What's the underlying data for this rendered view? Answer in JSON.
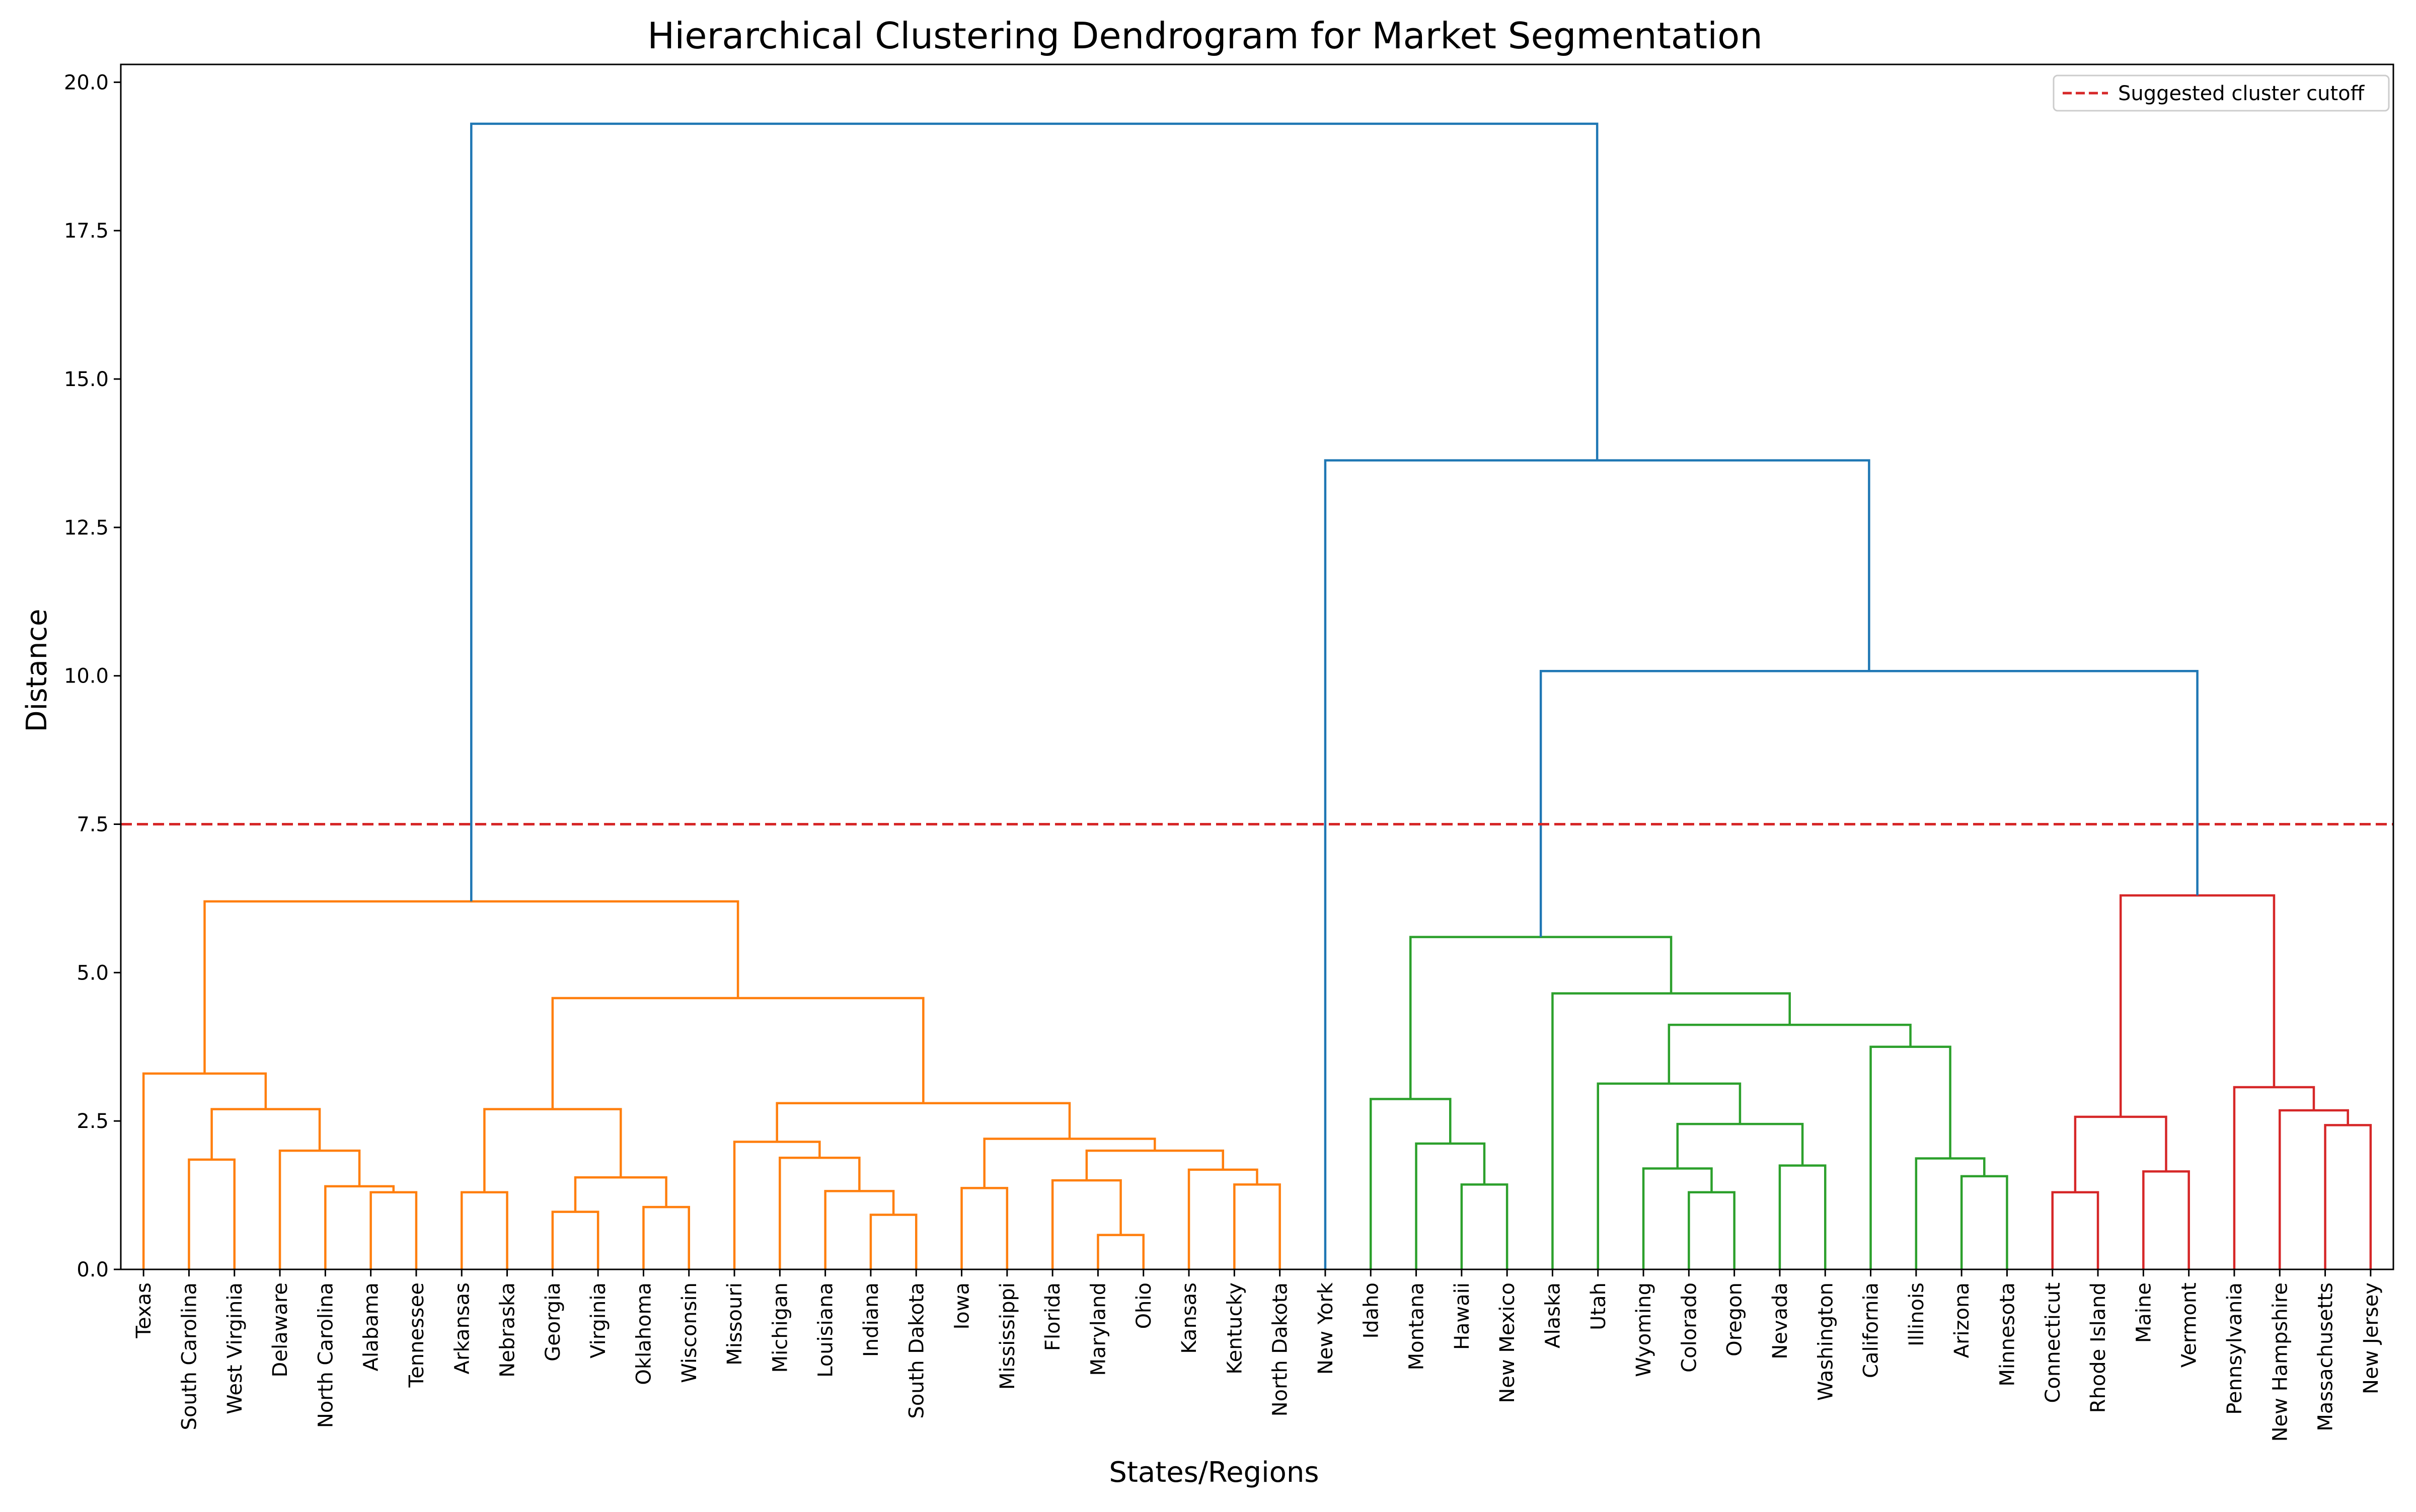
{
  "chart_data": {
    "type": "dendrogram",
    "title": "Hierarchical Clustering Dendrogram for Market Segmentation",
    "xlabel": "States/Regions",
    "ylabel": "Distance",
    "ylim": [
      0,
      20.3
    ],
    "yticks": [
      "0.0",
      "2.5",
      "5.0",
      "7.5",
      "10.0",
      "12.5",
      "15.0",
      "17.5",
      "20.0"
    ],
    "cutoff": {
      "value": 7.5,
      "label": "Suggested cluster cutoff",
      "color": "#d62728",
      "style": "dashed"
    },
    "legend_position": "upper-right",
    "grid": false,
    "leaves": [
      "Texas",
      "South Carolina",
      "West Virginia",
      "Delaware",
      "North Carolina",
      "Alabama",
      "Tennessee",
      "Arkansas",
      "Nebraska",
      "Georgia",
      "Virginia",
      "Oklahoma",
      "Wisconsin",
      "Missouri",
      "Michigan",
      "Louisiana",
      "Indiana",
      "South Dakota",
      "Iowa",
      "Mississippi",
      "Florida",
      "Maryland",
      "Ohio",
      "Kansas",
      "Kentucky",
      "North Dakota",
      "New York",
      "Idaho",
      "Montana",
      "Hawaii",
      "New Mexico",
      "Alaska",
      "Utah",
      "Wyoming",
      "Colorado",
      "Oregon",
      "Nevada",
      "Washington",
      "California",
      "Illinois",
      "Arizona",
      "Minnesota",
      "Connecticut",
      "Rhode Island",
      "Maine",
      "Vermont",
      "Pennsylvania",
      "New Hampshire",
      "Massachusetts",
      "New Jersey"
    ],
    "colors": {
      "C1": "#ff7f0e",
      "C2": "#2ca02c",
      "C3": "#d62728",
      "above": "#1f77b4"
    },
    "merges": [
      [
        "South Carolina",
        "West Virginia",
        1.85,
        "C1"
      ],
      [
        "Alabama",
        "Tennessee",
        1.3,
        "C1"
      ],
      [
        "North Carolina",
        "m2",
        1.4,
        "C1"
      ],
      [
        "Delaware",
        "m3",
        2.0,
        "C1"
      ],
      [
        "m1",
        "m4",
        2.7,
        "C1"
      ],
      [
        "Texas",
        "m5",
        3.3,
        "C1"
      ],
      [
        "Arkansas",
        "Nebraska",
        1.3,
        "C1"
      ],
      [
        "Georgia",
        "Virginia",
        0.97,
        "C1"
      ],
      [
        "Oklahoma",
        "Wisconsin",
        1.05,
        "C1"
      ],
      [
        "m8",
        "m9",
        1.55,
        "C1"
      ],
      [
        "m7",
        "m10",
        2.7,
        "C1"
      ],
      [
        "Indiana",
        "South Dakota",
        0.92,
        "C1"
      ],
      [
        "Louisiana",
        "m12",
        1.32,
        "C1"
      ],
      [
        "Michigan",
        "m13",
        1.88,
        "C1"
      ],
      [
        "Missouri",
        "m14",
        2.15,
        "C1"
      ],
      [
        "Iowa",
        "Mississippi",
        1.37,
        "C1"
      ],
      [
        "Maryland",
        "Ohio",
        0.58,
        "C1"
      ],
      [
        "Florida",
        "m17",
        1.5,
        "C1"
      ],
      [
        "Kentucky",
        "North Dakota",
        1.43,
        "C1"
      ],
      [
        "Kansas",
        "m19",
        1.68,
        "C1"
      ],
      [
        "m18",
        "m20",
        2.0,
        "C1"
      ],
      [
        "m16",
        "m21",
        2.2,
        "C1"
      ],
      [
        "m15",
        "m22",
        2.8,
        "C1"
      ],
      [
        "m11",
        "m23",
        4.57,
        "C1"
      ],
      [
        "m6",
        "m24",
        6.2,
        "C1"
      ],
      [
        "Hawaii",
        "New Mexico",
        1.43,
        "C2"
      ],
      [
        "Montana",
        "m26",
        2.12,
        "C2"
      ],
      [
        "Idaho",
        "m27",
        2.87,
        "C2"
      ],
      [
        "Colorado",
        "Oregon",
        1.3,
        "C2"
      ],
      [
        "Wyoming",
        "m29",
        1.7,
        "C2"
      ],
      [
        "Nevada",
        "Washington",
        1.75,
        "C2"
      ],
      [
        "m30",
        "m31",
        2.45,
        "C2"
      ],
      [
        "Utah",
        "m32",
        3.13,
        "C2"
      ],
      [
        "Arizona",
        "Minnesota",
        1.57,
        "C2"
      ],
      [
        "Illinois",
        "m34",
        1.87,
        "C2"
      ],
      [
        "California",
        "m35",
        3.75,
        "C2"
      ],
      [
        "m33",
        "m36",
        4.12,
        "C2"
      ],
      [
        "Alaska",
        "m37",
        4.65,
        "C2"
      ],
      [
        "m28",
        "m38",
        5.6,
        "C2"
      ],
      [
        "Connecticut",
        "Rhode Island",
        1.3,
        "C3"
      ],
      [
        "Maine",
        "Vermont",
        1.65,
        "C3"
      ],
      [
        "m40",
        "m41",
        2.57,
        "C3"
      ],
      [
        "Massachusetts",
        "New Jersey",
        2.43,
        "C3"
      ],
      [
        "New Hampshire",
        "m43",
        2.68,
        "C3"
      ],
      [
        "Pennsylvania",
        "m44",
        3.07,
        "C3"
      ],
      [
        "m42",
        "m45",
        6.3,
        "C3"
      ],
      [
        "m39",
        "m46",
        10.08,
        "above"
      ],
      [
        "New York",
        "m47",
        13.63,
        "above"
      ],
      [
        "m25",
        "m48",
        19.3,
        "above"
      ]
    ]
  }
}
